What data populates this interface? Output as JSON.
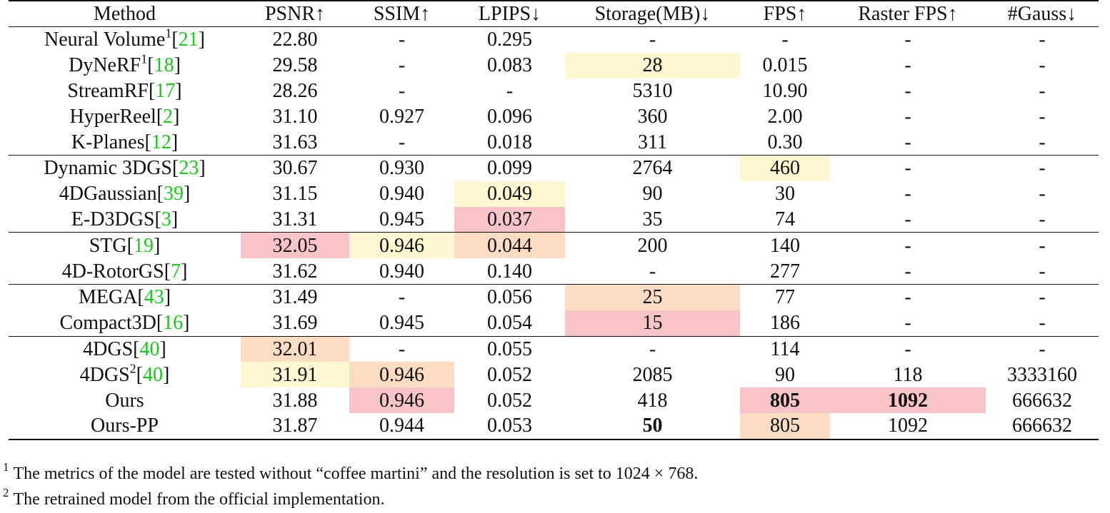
{
  "headers": [
    "Method",
    "PSNR↑",
    "SSIM↑",
    "LPIPS↓",
    "Storage(MB)↓",
    "FPS↑",
    "Raster FPS↑",
    "#Gauss↓"
  ],
  "colors": {
    "red": "#f9c4c8",
    "orange": "#fcddc4",
    "yellow": "#fdf7d2",
    "ref": "#19c819"
  },
  "groups": [
    [
      {
        "name": "Neural Volume",
        "sup": "1",
        "ref": "21",
        "cells": [
          "22.80",
          "-",
          "0.295",
          "-",
          "-",
          "-",
          "-"
        ]
      },
      {
        "name": "DyNeRF",
        "sup": "1",
        "ref": "18",
        "cells": [
          "29.58",
          "-",
          "0.083",
          "28",
          "0.015",
          "-",
          "-"
        ]
      },
      {
        "name": "StreamRF",
        "ref": "17",
        "cells": [
          "28.26",
          "-",
          "-",
          "5310",
          "10.90",
          "-",
          "-"
        ]
      },
      {
        "name": "HyperReel",
        "ref": "2",
        "cells": [
          "31.10",
          "0.927",
          "0.096",
          "360",
          "2.00",
          "-",
          "-"
        ]
      },
      {
        "name": "K-Planes",
        "ref": "12",
        "cells": [
          "31.63",
          "-",
          "0.018",
          "311",
          "0.30",
          "-",
          "-"
        ]
      }
    ],
    [
      {
        "name": "Dynamic 3DGS",
        "ref": "23",
        "cells": [
          "30.67",
          "0.930",
          "0.099",
          "2764",
          "460",
          "-",
          "-"
        ]
      },
      {
        "name": "4DGaussian",
        "ref": "39",
        "cells": [
          "31.15",
          "0.940",
          "0.049",
          "90",
          "30",
          "-",
          "-"
        ]
      },
      {
        "name": "E-D3DGS",
        "ref": "3",
        "cells": [
          "31.31",
          "0.945",
          "0.037",
          "35",
          "74",
          "-",
          "-"
        ]
      }
    ],
    [
      {
        "name": "STG",
        "ref": "19",
        "cells": [
          "32.05",
          "0.946",
          "0.044",
          "200",
          "140",
          "-",
          "-"
        ]
      },
      {
        "name": "4D-RotorGS",
        "ref": "7",
        "cells": [
          "31.62",
          "0.940",
          "0.140",
          "-",
          "277",
          "-",
          "-"
        ]
      }
    ],
    [
      {
        "name": "MEGA",
        "ref": "43",
        "cells": [
          "31.49",
          "-",
          "0.056",
          "25",
          "77",
          "-",
          "-"
        ]
      },
      {
        "name": "Compact3D",
        "ref": "16",
        "cells": [
          "31.69",
          "0.945",
          "0.054",
          "15",
          "186",
          "-",
          "-"
        ]
      }
    ],
    [
      {
        "name": "4DGS",
        "ref": "40",
        "cells": [
          "32.01",
          "-",
          "0.055",
          "-",
          "114",
          "-",
          "-"
        ]
      },
      {
        "name": "4DGS",
        "sup": "2",
        "ref": "40",
        "cells": [
          "31.91",
          "0.946",
          "0.052",
          "2085",
          "90",
          "118",
          "3333160"
        ]
      },
      {
        "name": "Ours",
        "cells": [
          "31.88",
          "0.946",
          "0.052",
          "418",
          "805",
          "1092",
          "666632"
        ]
      },
      {
        "name": "Ours-PP",
        "cells": [
          "31.87",
          "0.944",
          "0.053",
          "50",
          "805",
          "1092",
          "666632"
        ]
      }
    ]
  ],
  "footnotes": [
    {
      "mark": "1",
      "text": "The metrics of the model are tested without “coffee martini” and the resolution is set to 1024 × 768."
    },
    {
      "mark": "2",
      "text": "The retrained model from the official implementation."
    }
  ]
}
